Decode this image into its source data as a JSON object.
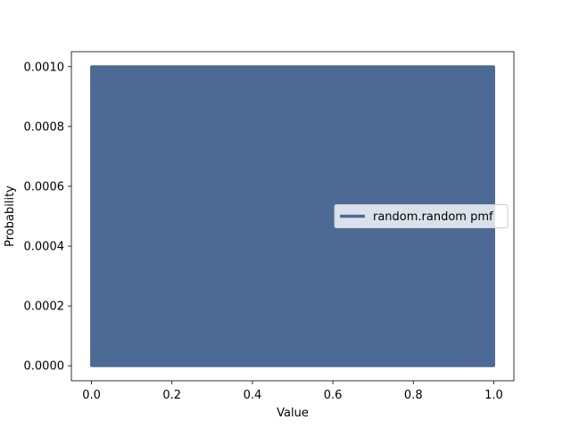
{
  "chart_data": {
    "type": "bar",
    "title": "",
    "xlabel": "Value",
    "ylabel": "Probability",
    "xlim": [
      -0.05,
      1.05
    ],
    "ylim": [
      -5e-05,
      0.00105
    ],
    "xticks": [
      0.0,
      0.2,
      0.4,
      0.6,
      0.8,
      1.0
    ],
    "xtick_labels": [
      "0.0",
      "0.2",
      "0.4",
      "0.6",
      "0.8",
      "1.0"
    ],
    "yticks": [
      0.0,
      0.0002,
      0.0004,
      0.0006,
      0.0008,
      0.001
    ],
    "ytick_labels": [
      "0.0000",
      "0.0002",
      "0.0004",
      "0.0006",
      "0.0008",
      "0.0010"
    ],
    "grid": false,
    "legend_position": "center-right",
    "series": [
      {
        "name": "random.random pmf",
        "color": "#4c6a94",
        "description_values": {
          "x_start": 0.0,
          "x_end": 1.0,
          "count": 1000,
          "probability": 0.001
        }
      }
    ]
  }
}
